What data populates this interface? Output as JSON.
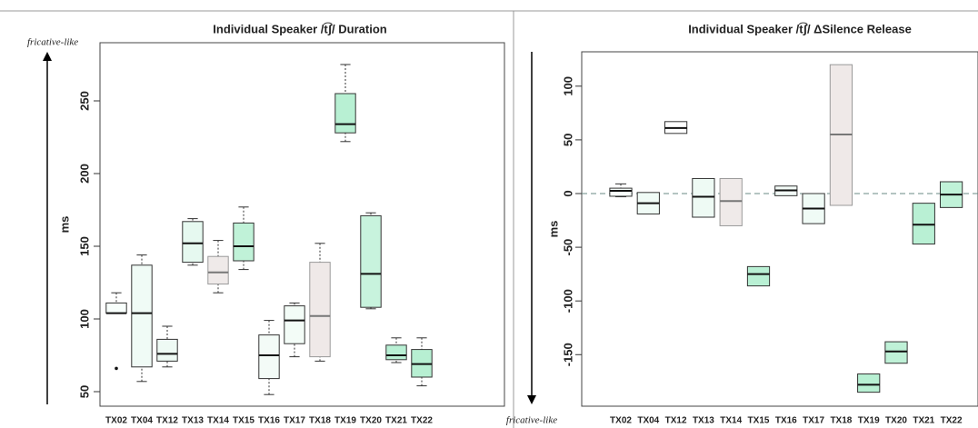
{
  "chart_data": [
    {
      "type": "box",
      "title": "Individual Speaker /t͡ʃ/ Duration",
      "y_label": "ms",
      "arrow_label": "fricative-like",
      "arrow": "up",
      "categories": [
        "TX02",
        "TX04",
        "TX12",
        "TX13",
        "TX14",
        "TX15",
        "TX16",
        "TX17",
        "TX18",
        "TX19",
        "TX20",
        "TX21",
        "TX22"
      ],
      "colors": [
        "#f8fffc",
        "#f0fbf6",
        "#eefaf4",
        "#e6f9f0",
        "#efeae9",
        "#c0f2d8",
        "#f3fbf7",
        "#f3fcf7",
        "#efe9e8",
        "#b8f0d3",
        "#c8f3dd",
        "#b9f0d4",
        "#b7efd2"
      ],
      "min": [
        104,
        57,
        67,
        137,
        118,
        134,
        48,
        74,
        71,
        222,
        107,
        70,
        54
      ],
      "q1": [
        104,
        67,
        71,
        139,
        124,
        140,
        59,
        83,
        74,
        228,
        108,
        72,
        60
      ],
      "median": [
        104,
        104,
        76,
        152,
        132,
        150,
        75,
        99,
        102,
        234,
        131,
        75,
        69
      ],
      "q3": [
        111,
        137,
        86,
        167,
        143,
        166,
        89,
        109,
        139,
        255,
        171,
        82,
        79
      ],
      "max": [
        118,
        144,
        95,
        169,
        154,
        177,
        99,
        111,
        152,
        275,
        173,
        87,
        87
      ],
      "outliers": [
        [
          66
        ],
        [],
        [],
        [],
        [],
        [],
        [],
        [],
        [],
        [],
        [],
        [],
        []
      ],
      "ylim": [
        40,
        290
      ],
      "yticks": [
        50,
        100,
        150,
        200,
        250
      ]
    },
    {
      "type": "box",
      "title": "Individual Speaker /t͡ʃ/ ΔSilence Release",
      "y_label": "ms",
      "arrow_label": "fricative-like",
      "arrow": "down",
      "categories": [
        "TX02",
        "TX04",
        "TX12",
        "TX13",
        "TX14",
        "TX15",
        "TX16",
        "TX17",
        "TX18",
        "TX19",
        "TX20",
        "TX21",
        "TX22"
      ],
      "colors": [
        "#f8fffc",
        "#f0fbf6",
        "#ffffff",
        "#eefaf4",
        "#efeae9",
        "#b9f0d4",
        "#f3fbf7",
        "#f0fbf6",
        "#efe9e8",
        "#b8f0d3",
        "#bff1d7",
        "#b9f0d4",
        "#c0f2d8"
      ],
      "min": [
        -3,
        null,
        null,
        null,
        null,
        null,
        null,
        null,
        null,
        null,
        null,
        null,
        null
      ],
      "q1": [
        -2.5,
        -19,
        56,
        -22,
        -30,
        -86,
        -2,
        -28,
        -11,
        -185,
        -158,
        -47,
        -13
      ],
      "median": [
        2.5,
        -9,
        61,
        -3,
        -7,
        -75,
        3,
        -14,
        55,
        -178,
        -147,
        -29,
        -1
      ],
      "q3": [
        5,
        1,
        67,
        14,
        14,
        -68,
        7,
        0,
        120,
        -168,
        -138,
        -9,
        11
      ],
      "max": [
        9,
        null,
        null,
        null,
        null,
        null,
        null,
        null,
        null,
        null,
        null,
        null,
        null
      ],
      "reference_line": 0,
      "ylim": [
        -198,
        132
      ],
      "yticks": [
        -150,
        -100,
        -50,
        0,
        50,
        100
      ]
    }
  ]
}
